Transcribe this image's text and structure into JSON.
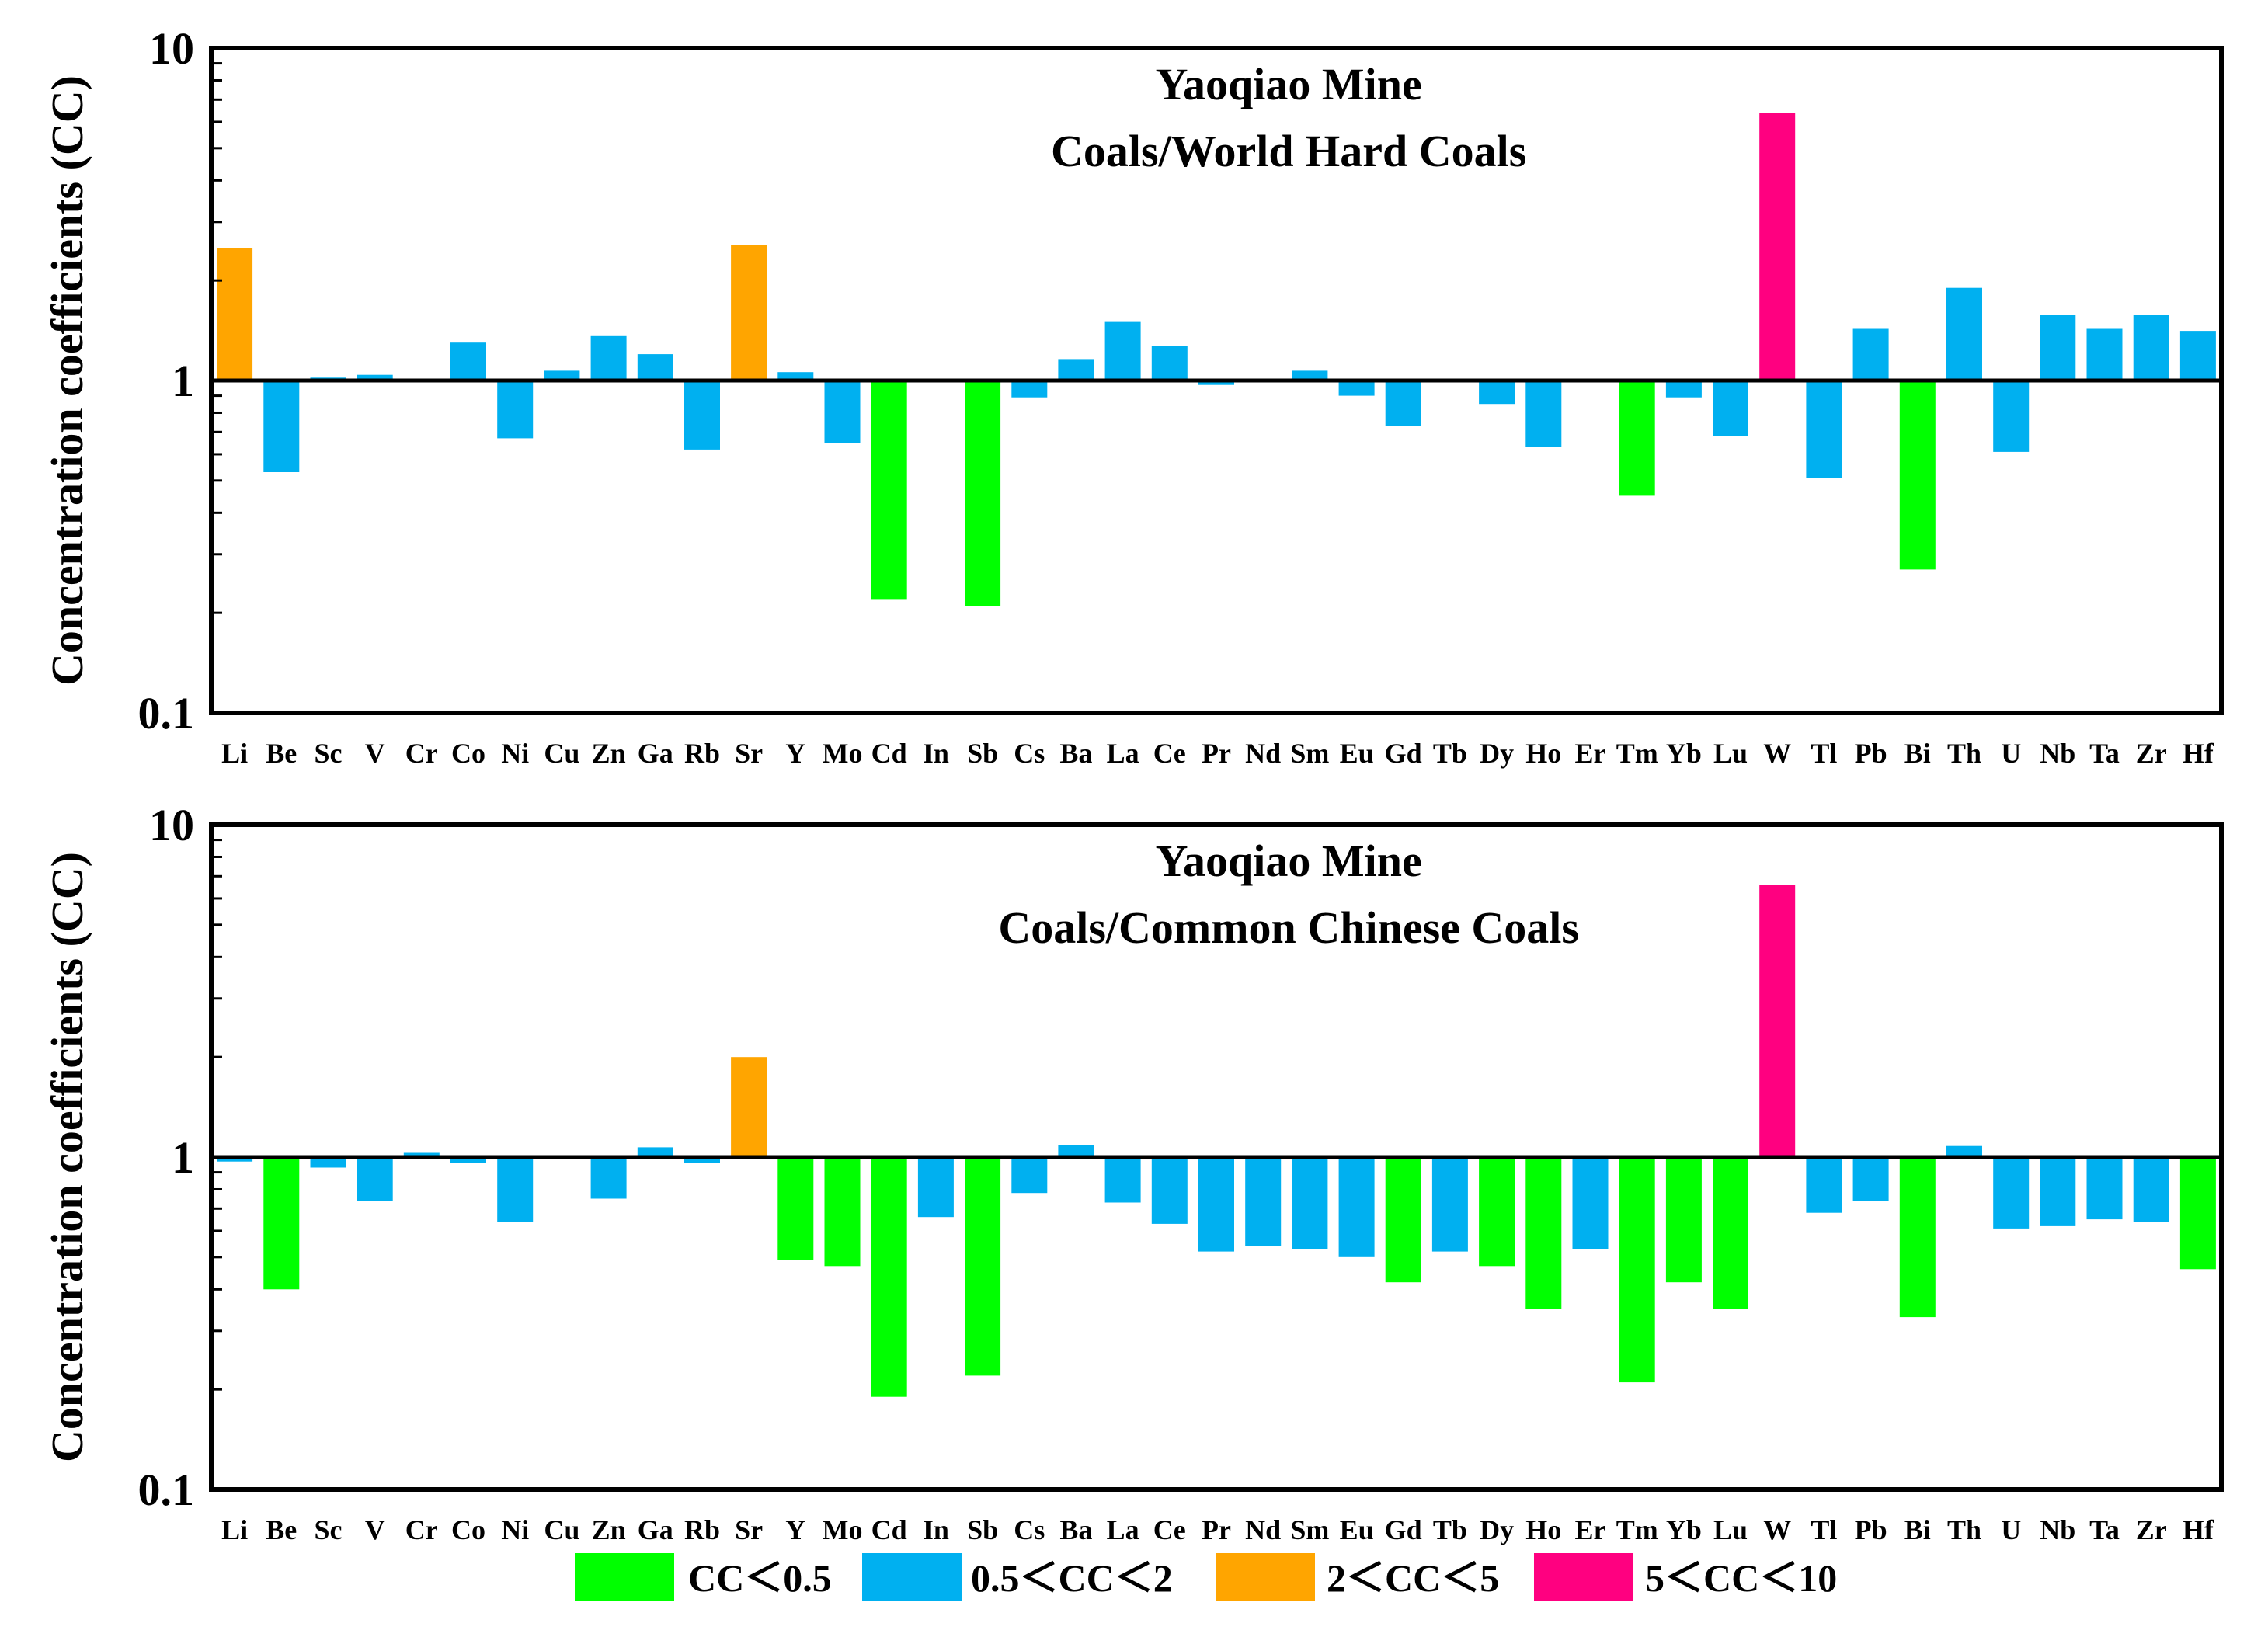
{
  "palette": {
    "cc_lt_0_5": "#00ff00",
    "cc_0_5_2": "#00b0f0",
    "cc_2_5": "#ffa500",
    "cc_5_10": "#ff0080"
  },
  "legend": [
    {
      "label": "CC＜0.5",
      "color_key": "cc_lt_0_5"
    },
    {
      "label": "0.5＜CC＜2",
      "color_key": "cc_0_5_2"
    },
    {
      "label": "2＜CC＜5",
      "color_key": "cc_2_5"
    },
    {
      "label": "5＜CC＜10",
      "color_key": "cc_5_10"
    }
  ],
  "chart_data": [
    {
      "type": "bar",
      "scale": "log",
      "baseline": 1,
      "title": [
        "Yaoqiao Mine",
        "Coals/World Hard Coals"
      ],
      "ylabel": "Concentration coefficients (CC)",
      "ylim": [
        0.1,
        10
      ],
      "yticks": [
        "0.1",
        "1",
        "10"
      ],
      "categories": [
        "Li",
        "Be",
        "Sc",
        "V",
        "Cr",
        "Co",
        "Ni",
        "Cu",
        "Zn",
        "Ga",
        "Rb",
        "Sr",
        "Y",
        "Mo",
        "Cd",
        "In",
        "Sb",
        "Cs",
        "Ba",
        "La",
        "Ce",
        "Pr",
        "Nd",
        "Sm",
        "Eu",
        "Gd",
        "Tb",
        "Dy",
        "Ho",
        "Er",
        "Tm",
        "Yb",
        "Lu",
        "W",
        "Tl",
        "Pb",
        "Bi",
        "Th",
        "U",
        "Nb",
        "Ta",
        "Zr",
        "Hf"
      ],
      "values": [
        2.5,
        0.53,
        1.02,
        1.04,
        1.0,
        1.3,
        0.67,
        1.07,
        1.36,
        1.2,
        0.62,
        2.55,
        1.06,
        0.65,
        0.22,
        1.0,
        0.21,
        0.89,
        1.16,
        1.5,
        1.27,
        0.97,
        1.0,
        1.07,
        0.9,
        0.73,
        1.0,
        0.85,
        0.63,
        1.0,
        0.45,
        0.89,
        0.68,
        6.4,
        0.51,
        1.43,
        0.27,
        1.9,
        0.61,
        1.58,
        1.43,
        1.58,
        1.41
      ]
    },
    {
      "type": "bar",
      "scale": "log",
      "baseline": 1,
      "title": [
        "Yaoqiao Mine",
        "Coals/Common Chinese Coals"
      ],
      "ylabel": "Concentration coefficients (CC)",
      "ylim": [
        0.1,
        10
      ],
      "yticks": [
        "0.1",
        "1",
        "10"
      ],
      "categories": [
        "Li",
        "Be",
        "Sc",
        "V",
        "Cr",
        "Co",
        "Ni",
        "Cu",
        "Zn",
        "Ga",
        "Rb",
        "Sr",
        "Y",
        "Mo",
        "Cd",
        "In",
        "Sb",
        "Cs",
        "Ba",
        "La",
        "Ce",
        "Pr",
        "Nd",
        "Sm",
        "Eu",
        "Gd",
        "Tb",
        "Dy",
        "Ho",
        "Er",
        "Tm",
        "Yb",
        "Lu",
        "W",
        "Tl",
        "Pb",
        "Bi",
        "Th",
        "U",
        "Nb",
        "Ta",
        "Zr",
        "Hf"
      ],
      "values": [
        0.97,
        0.4,
        0.93,
        0.74,
        1.03,
        0.96,
        0.64,
        1.0,
        0.75,
        1.07,
        0.96,
        2.0,
        0.49,
        0.47,
        0.19,
        0.66,
        0.22,
        0.78,
        1.09,
        0.73,
        0.63,
        0.52,
        0.54,
        0.53,
        0.5,
        0.42,
        0.52,
        0.47,
        0.35,
        0.53,
        0.21,
        0.42,
        0.35,
        6.6,
        0.68,
        0.74,
        0.33,
        1.08,
        0.61,
        0.62,
        0.65,
        0.64,
        0.46
      ]
    }
  ]
}
